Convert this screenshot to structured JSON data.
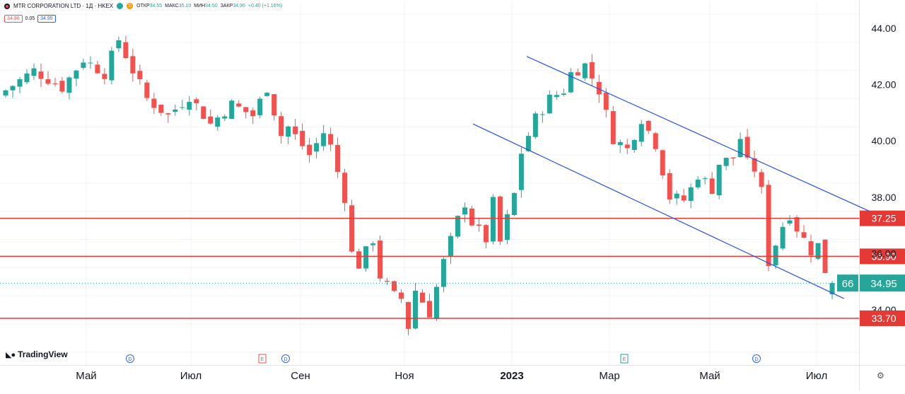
{
  "header": {
    "title": "MTR CORPORATION LTD · 1Д · HKEX",
    "ohlc": [
      {
        "k": "ОТКР",
        "v": "34.55"
      },
      {
        "k": "МАКС",
        "v": "35.10"
      },
      {
        "k": "МИН",
        "v": "34.50"
      },
      {
        "k": "ЗАКР",
        "v": "34.95"
      },
      {
        "k": "",
        "v": "+0.40 (+1.16%)"
      }
    ],
    "sell": "34.90",
    "spread": "0.05",
    "buy": "34.95",
    "mark_d": "D"
  },
  "branding": {
    "logo": "TradingView"
  },
  "colors": {
    "up": "#26a69a",
    "down": "#ef5350",
    "level_line": "#e53935",
    "channel": "#2952e0",
    "grid": "#f0f3fa",
    "last_price": "#26a69a"
  },
  "chart_data": {
    "type": "candlestick",
    "y_axis": {
      "min": 32.4,
      "max": 45.3,
      "ticks": [
        44,
        42,
        40,
        38,
        36,
        34
      ],
      "tick_labels": [
        "44.00",
        "42.00",
        "40.00",
        "38.00",
        "36.00",
        "34.00"
      ]
    },
    "x_axis": {
      "labels": [
        "Май",
        "Июл",
        "Сен",
        "Ноя",
        "2023",
        "Мар",
        "Май",
        "Июл"
      ]
    },
    "levels": [
      {
        "value": 37.25,
        "label": "37.25"
      },
      {
        "value": 35.9,
        "label": "35.90"
      },
      {
        "value": 33.7,
        "label": "33.70"
      }
    ],
    "last_price": {
      "value": 34.95,
      "label": "34.95",
      "countdown": "66"
    },
    "events": [
      {
        "type": "D",
        "date_label": "Май"
      },
      {
        "type": "E",
        "date_label": "Авг"
      },
      {
        "type": "D",
        "date_label": "Авг"
      },
      {
        "type": "E",
        "date_label": "Мар"
      },
      {
        "type": "D",
        "date_label": "Июн"
      }
    ],
    "channel": {
      "upper": [
        {
          "date": "2023-01-10",
          "price": 43.0
        },
        {
          "date": "2023-08-01",
          "price": 37.5
        }
      ],
      "lower": [
        {
          "date": "2022-12-10",
          "price": 40.6
        },
        {
          "date": "2023-07-17",
          "price": 34.4
        }
      ]
    },
    "anchors": [
      [
        0,
        41.8
      ],
      [
        4,
        42.5
      ],
      [
        8,
        41.9
      ],
      [
        11,
        42.9
      ],
      [
        14,
        42.4
      ],
      [
        16,
        43.6
      ],
      [
        18,
        42.5
      ],
      [
        20,
        41.5
      ],
      [
        23,
        40.9
      ],
      [
        26,
        41.6
      ],
      [
        29,
        40.6
      ],
      [
        32,
        41.3
      ],
      [
        35,
        40.9
      ],
      [
        37,
        41.9
      ],
      [
        39,
        40.2
      ],
      [
        40,
        40.5
      ],
      [
        43,
        39.5
      ],
      [
        45,
        40.3
      ],
      [
        46,
        39.8
      ],
      [
        48,
        38.0
      ],
      [
        49,
        36.0
      ],
      [
        50,
        35.6
      ],
      [
        52,
        36.5
      ],
      [
        53,
        35.2
      ],
      [
        55,
        34.5
      ],
      [
        56,
        34.4
      ],
      [
        57,
        33.4
      ],
      [
        58,
        34.7
      ],
      [
        60,
        33.9
      ],
      [
        61,
        34.8
      ],
      [
        62,
        35.7
      ],
      [
        64,
        37.2
      ],
      [
        65,
        37.8
      ],
      [
        66,
        37.1
      ],
      [
        68,
        36.5
      ],
      [
        69,
        37.8
      ],
      [
        70,
        36.4
      ],
      [
        72,
        38.1
      ],
      [
        73,
        39.6
      ],
      [
        75,
        40.8
      ],
      [
        77,
        41.5
      ],
      [
        79,
        41.8
      ],
      [
        80,
        42.4
      ],
      [
        82,
        42.7
      ],
      [
        84,
        41.8
      ],
      [
        86,
        40.1
      ],
      [
        88,
        39.7
      ],
      [
        90,
        40.8
      ],
      [
        92,
        39.9
      ],
      [
        94,
        38.0
      ],
      [
        96,
        37.9
      ],
      [
        97,
        38.3
      ],
      [
        98,
        38.8
      ],
      [
        100,
        38.3
      ],
      [
        101,
        39.2
      ],
      [
        103,
        39.4
      ],
      [
        104,
        40.1
      ],
      [
        105,
        39.2
      ],
      [
        106,
        39.0
      ],
      [
        107,
        38.2
      ],
      [
        108,
        35.7
      ],
      [
        110,
        37.0
      ],
      [
        111,
        37.4
      ],
      [
        112,
        36.9
      ],
      [
        114,
        36.1
      ],
      [
        115,
        36.3
      ],
      [
        116,
        35.4
      ],
      [
        117,
        34.95
      ]
    ]
  }
}
